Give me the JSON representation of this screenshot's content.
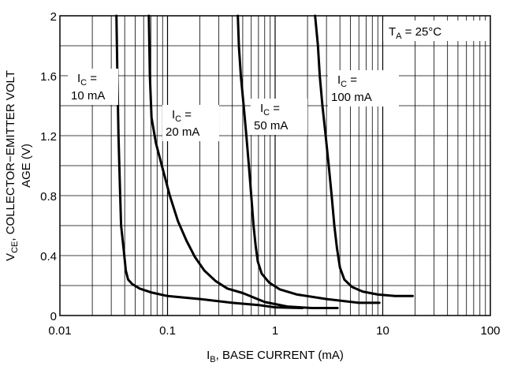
{
  "chart_data": {
    "type": "line",
    "title": "",
    "xlabel": {
      "main": "I",
      "sub": "B",
      "rest": ", BASE CURRENT (mA)"
    },
    "ylabel": {
      "line1": {
        "main": "V",
        "sub": "CE",
        "rest": ", COLLECTOR−EMITTER VOLT"
      },
      "line2": "AGE (V)"
    },
    "xscale": "log",
    "xlim": [
      0.01,
      100
    ],
    "ylim": [
      0,
      2
    ],
    "grid": true,
    "x_ticks": [
      {
        "value": 0.01,
        "label": "0.01"
      },
      {
        "value": 0.1,
        "label": "0.1"
      },
      {
        "value": 1,
        "label": "1"
      },
      {
        "value": 10,
        "label": "10"
      },
      {
        "value": 100,
        "label": "100"
      }
    ],
    "y_ticks": [
      {
        "value": 0,
        "label": "0"
      },
      {
        "value": 0.4,
        "label": "0.4"
      },
      {
        "value": 0.8,
        "label": "0.8"
      },
      {
        "value": 1.2,
        "label": "1.2"
      },
      {
        "value": 1.6,
        "label": "1.6"
      },
      {
        "value": 2,
        "label": "2"
      }
    ],
    "annotation": {
      "main": "T",
      "sub": "A",
      "rest": " = 25°C"
    },
    "series": [
      {
        "name": "IC = 10 mA",
        "label_lines": [
          {
            "main": "I",
            "sub": "C",
            "rest": " ="
          },
          {
            "main": "10 mA"
          }
        ],
        "points": [
          [
            0.0335,
            2.0
          ],
          [
            0.0342,
            1.6
          ],
          [
            0.035,
            1.2
          ],
          [
            0.036,
            0.9
          ],
          [
            0.037,
            0.6
          ],
          [
            0.039,
            0.45
          ],
          [
            0.041,
            0.3
          ],
          [
            0.043,
            0.24
          ],
          [
            0.047,
            0.21
          ],
          [
            0.055,
            0.18
          ],
          [
            0.07,
            0.155
          ],
          [
            0.1,
            0.13
          ],
          [
            0.2,
            0.11
          ],
          [
            0.4,
            0.085
          ],
          [
            0.7,
            0.07
          ],
          [
            1.0,
            0.055
          ],
          [
            1.8,
            0.05
          ]
        ]
      },
      {
        "name": "IC = 20 mA",
        "label_lines": [
          {
            "main": "I",
            "sub": "C",
            "rest": " ="
          },
          {
            "main": "20 mA"
          }
        ],
        "points": [
          [
            0.067,
            2.0
          ],
          [
            0.0685,
            1.6
          ],
          [
            0.071,
            1.32
          ],
          [
            0.078,
            1.15
          ],
          [
            0.09,
            0.98
          ],
          [
            0.105,
            0.8
          ],
          [
            0.125,
            0.63
          ],
          [
            0.15,
            0.5
          ],
          [
            0.18,
            0.39
          ],
          [
            0.22,
            0.3
          ],
          [
            0.28,
            0.23
          ],
          [
            0.36,
            0.18
          ],
          [
            0.5,
            0.15
          ],
          [
            0.8,
            0.09
          ],
          [
            1.3,
            0.06
          ],
          [
            2.2,
            0.05
          ],
          [
            3.8,
            0.05
          ]
        ]
      },
      {
        "name": "IC = 50 mA",
        "label_lines": [
          {
            "main": "I",
            "sub": "C",
            "rest": " ="
          },
          {
            "main": "50 mA"
          }
        ],
        "points": [
          [
            0.45,
            2.0
          ],
          [
            0.46,
            1.8
          ],
          [
            0.48,
            1.6
          ],
          [
            0.51,
            1.4
          ],
          [
            0.54,
            1.2
          ],
          [
            0.57,
            1.0
          ],
          [
            0.6,
            0.8
          ],
          [
            0.63,
            0.6
          ],
          [
            0.66,
            0.46
          ],
          [
            0.69,
            0.36
          ],
          [
            0.75,
            0.28
          ],
          [
            0.88,
            0.22
          ],
          [
            1.1,
            0.175
          ],
          [
            1.6,
            0.14
          ],
          [
            3,
            0.11
          ],
          [
            6,
            0.085
          ],
          [
            9.3,
            0.085
          ]
        ]
      },
      {
        "name": "IC = 100 mA",
        "label_lines": [
          {
            "main": "I",
            "sub": "C",
            "rest": " ="
          },
          {
            "main": "100 mA"
          }
        ],
        "points": [
          [
            2.35,
            2.0
          ],
          [
            2.5,
            1.8
          ],
          [
            2.6,
            1.6
          ],
          [
            2.75,
            1.4
          ],
          [
            2.95,
            1.2
          ],
          [
            3.15,
            1.0
          ],
          [
            3.35,
            0.8
          ],
          [
            3.55,
            0.6
          ],
          [
            3.75,
            0.45
          ],
          [
            4.0,
            0.32
          ],
          [
            4.4,
            0.24
          ],
          [
            5.2,
            0.19
          ],
          [
            6.5,
            0.16
          ],
          [
            9,
            0.14
          ],
          [
            13,
            0.13
          ],
          [
            19,
            0.13
          ]
        ]
      }
    ]
  }
}
